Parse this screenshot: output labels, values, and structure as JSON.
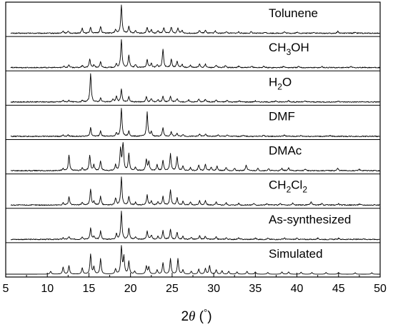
{
  "chart_data": {
    "type": "line",
    "xlabel": "2θ (°)",
    "xlim": [
      5,
      50
    ],
    "x_ticks": [
      "5",
      "10",
      "15",
      "20",
      "25",
      "30",
      "35",
      "40",
      "45",
      "50"
    ],
    "grid": false,
    "layout": "stacked panels",
    "series": [
      {
        "name": "Tolunene",
        "name_parts": [
          {
            "t": "Tolunene"
          }
        ],
        "peaks": [
          [
            11.9,
            0.08
          ],
          [
            12.5,
            0.06
          ],
          [
            14.2,
            0.18
          ],
          [
            15.2,
            0.22
          ],
          [
            16.4,
            0.25
          ],
          [
            18.2,
            0.12
          ],
          [
            18.9,
            1.0
          ],
          [
            19.8,
            0.25
          ],
          [
            20.6,
            0.08
          ],
          [
            22.0,
            0.2
          ],
          [
            22.5,
            0.12
          ],
          [
            23.3,
            0.1
          ],
          [
            24.0,
            0.2
          ],
          [
            24.9,
            0.22
          ],
          [
            25.7,
            0.18
          ],
          [
            26.2,
            0.1
          ],
          [
            28.3,
            0.1
          ],
          [
            29.0,
            0.1
          ],
          [
            30.2,
            0.08
          ],
          [
            31.5,
            0.06
          ],
          [
            33.0,
            0.05
          ],
          [
            34.5,
            0.05
          ],
          [
            36.2,
            0.04
          ],
          [
            38.5,
            0.05
          ],
          [
            40.0,
            0.04
          ],
          [
            42.0,
            0.04
          ],
          [
            44.9,
            0.07
          ],
          [
            47.0,
            0.04
          ]
        ]
      },
      {
        "name": "CH3OH",
        "name_parts": [
          {
            "t": "CH"
          },
          {
            "t": "3",
            "sub": true
          },
          {
            "t": "OH"
          }
        ],
        "peaks": [
          [
            12.0,
            0.06
          ],
          [
            12.6,
            0.1
          ],
          [
            14.2,
            0.08
          ],
          [
            15.1,
            0.3
          ],
          [
            15.6,
            0.1
          ],
          [
            16.4,
            0.2
          ],
          [
            18.3,
            0.12
          ],
          [
            18.9,
            1.0
          ],
          [
            19.8,
            0.45
          ],
          [
            20.6,
            0.1
          ],
          [
            22.0,
            0.3
          ],
          [
            22.5,
            0.15
          ],
          [
            23.2,
            0.1
          ],
          [
            23.9,
            0.65
          ],
          [
            24.9,
            0.3
          ],
          [
            25.6,
            0.22
          ],
          [
            26.2,
            0.12
          ],
          [
            27.2,
            0.08
          ],
          [
            28.3,
            0.14
          ],
          [
            29.0,
            0.12
          ],
          [
            30.3,
            0.08
          ],
          [
            31.4,
            0.07
          ],
          [
            33.0,
            0.05
          ],
          [
            34.6,
            0.05
          ],
          [
            36.0,
            0.04
          ],
          [
            38.4,
            0.05
          ],
          [
            40.2,
            0.04
          ],
          [
            43.0,
            0.04
          ],
          [
            46.5,
            0.04
          ]
        ]
      },
      {
        "name": "H2O",
        "name_parts": [
          {
            "t": "H"
          },
          {
            "t": "2",
            "sub": true
          },
          {
            "t": "O"
          }
        ],
        "peaks": [
          [
            11.9,
            0.06
          ],
          [
            12.6,
            0.06
          ],
          [
            14.2,
            0.05
          ],
          [
            15.2,
            1.0
          ],
          [
            16.4,
            0.14
          ],
          [
            17.9,
            0.1
          ],
          [
            18.3,
            0.2
          ],
          [
            18.9,
            0.45
          ],
          [
            19.8,
            0.18
          ],
          [
            21.9,
            0.18
          ],
          [
            22.5,
            0.12
          ],
          [
            23.3,
            0.08
          ],
          [
            23.9,
            0.2
          ],
          [
            24.8,
            0.2
          ],
          [
            25.6,
            0.12
          ],
          [
            27.0,
            0.07
          ],
          [
            28.2,
            0.1
          ],
          [
            29.0,
            0.1
          ],
          [
            30.3,
            0.07
          ],
          [
            31.6,
            0.06
          ],
          [
            33.1,
            0.04
          ],
          [
            35.0,
            0.04
          ],
          [
            37.5,
            0.04
          ],
          [
            39.0,
            0.05
          ],
          [
            41.0,
            0.03
          ],
          [
            45.0,
            0.04
          ]
        ]
      },
      {
        "name": "DMF",
        "name_parts": [
          {
            "t": "DMF"
          }
        ],
        "peaks": [
          [
            11.9,
            0.05
          ],
          [
            12.5,
            0.05
          ],
          [
            15.2,
            0.3
          ],
          [
            16.4,
            0.2
          ],
          [
            18.3,
            0.12
          ],
          [
            18.9,
            1.0
          ],
          [
            19.8,
            0.18
          ],
          [
            22.0,
            0.85
          ],
          [
            22.5,
            0.15
          ],
          [
            23.9,
            0.3
          ],
          [
            24.9,
            0.15
          ],
          [
            25.6,
            0.1
          ],
          [
            26.3,
            0.07
          ],
          [
            28.3,
            0.08
          ],
          [
            29.0,
            0.08
          ],
          [
            30.5,
            0.05
          ],
          [
            31.6,
            0.05
          ],
          [
            33.5,
            0.04
          ],
          [
            36.0,
            0.04
          ],
          [
            38.5,
            0.05
          ],
          [
            40.5,
            0.03
          ],
          [
            44.0,
            0.03
          ]
        ]
      },
      {
        "name": "DMAc",
        "name_parts": [
          {
            "t": "DMAc"
          }
        ],
        "peaks": [
          [
            11.9,
            0.08
          ],
          [
            12.6,
            0.55
          ],
          [
            14.2,
            0.1
          ],
          [
            15.1,
            0.55
          ],
          [
            15.6,
            0.2
          ],
          [
            16.4,
            0.35
          ],
          [
            18.2,
            0.2
          ],
          [
            18.8,
            0.75
          ],
          [
            19.1,
            1.0
          ],
          [
            19.8,
            0.6
          ],
          [
            20.6,
            0.12
          ],
          [
            21.9,
            0.4
          ],
          [
            22.2,
            0.3
          ],
          [
            23.2,
            0.2
          ],
          [
            23.9,
            0.35
          ],
          [
            24.8,
            0.6
          ],
          [
            25.6,
            0.5
          ],
          [
            26.3,
            0.18
          ],
          [
            27.2,
            0.1
          ],
          [
            28.2,
            0.2
          ],
          [
            29.0,
            0.22
          ],
          [
            29.7,
            0.12
          ],
          [
            30.4,
            0.15
          ],
          [
            31.5,
            0.12
          ],
          [
            32.5,
            0.08
          ],
          [
            33.9,
            0.2
          ],
          [
            35.3,
            0.08
          ],
          [
            36.6,
            0.06
          ],
          [
            38.2,
            0.08
          ],
          [
            39.0,
            0.1
          ],
          [
            41.0,
            0.06
          ],
          [
            44.9,
            0.08
          ],
          [
            47.5,
            0.05
          ]
        ]
      },
      {
        "name": "CH2Cl2",
        "name_parts": [
          {
            "t": "CH"
          },
          {
            "t": "2",
            "sub": true
          },
          {
            "t": "Cl"
          },
          {
            "t": "2",
            "sub": true
          }
        ],
        "peaks": [
          [
            11.9,
            0.08
          ],
          [
            12.6,
            0.28
          ],
          [
            14.2,
            0.1
          ],
          [
            15.2,
            0.55
          ],
          [
            15.6,
            0.12
          ],
          [
            16.4,
            0.3
          ],
          [
            18.2,
            0.25
          ],
          [
            18.9,
            1.0
          ],
          [
            19.8,
            0.3
          ],
          [
            20.6,
            0.1
          ],
          [
            22.0,
            0.35
          ],
          [
            22.5,
            0.15
          ],
          [
            23.3,
            0.12
          ],
          [
            23.9,
            0.3
          ],
          [
            24.8,
            0.55
          ],
          [
            25.6,
            0.25
          ],
          [
            26.3,
            0.12
          ],
          [
            27.2,
            0.1
          ],
          [
            28.3,
            0.15
          ],
          [
            29.0,
            0.15
          ],
          [
            30.3,
            0.1
          ],
          [
            31.5,
            0.08
          ],
          [
            33.0,
            0.06
          ],
          [
            34.8,
            0.06
          ],
          [
            36.4,
            0.05
          ],
          [
            38.0,
            0.06
          ],
          [
            39.5,
            0.07
          ],
          [
            41.7,
            0.12
          ],
          [
            43.0,
            0.05
          ],
          [
            45.0,
            0.05
          ],
          [
            47.5,
            0.04
          ]
        ]
      },
      {
        "name": "As-synthesized",
        "name_parts": [
          {
            "t": "As-synthesized"
          }
        ],
        "peaks": [
          [
            11.9,
            0.06
          ],
          [
            12.6,
            0.1
          ],
          [
            14.2,
            0.1
          ],
          [
            15.2,
            0.4
          ],
          [
            15.6,
            0.1
          ],
          [
            16.4,
            0.3
          ],
          [
            18.3,
            0.2
          ],
          [
            18.9,
            1.0
          ],
          [
            19.8,
            0.4
          ],
          [
            20.6,
            0.1
          ],
          [
            22.0,
            0.3
          ],
          [
            22.5,
            0.15
          ],
          [
            23.3,
            0.1
          ],
          [
            23.9,
            0.3
          ],
          [
            24.8,
            0.35
          ],
          [
            25.6,
            0.25
          ],
          [
            26.3,
            0.1
          ],
          [
            27.3,
            0.08
          ],
          [
            28.3,
            0.12
          ],
          [
            29.0,
            0.12
          ],
          [
            30.3,
            0.08
          ],
          [
            31.5,
            0.06
          ],
          [
            33.0,
            0.05
          ],
          [
            35.0,
            0.05
          ],
          [
            36.5,
            0.04
          ],
          [
            38.5,
            0.05
          ],
          [
            40.0,
            0.04
          ],
          [
            42.5,
            0.04
          ],
          [
            45.0,
            0.04
          ],
          [
            48.0,
            0.03
          ]
        ]
      },
      {
        "name": "Simulated",
        "name_parts": [
          {
            "t": "Simulated"
          }
        ],
        "peaks": [
          [
            10.4,
            0.1
          ],
          [
            11.9,
            0.25
          ],
          [
            12.6,
            0.3
          ],
          [
            14.2,
            0.22
          ],
          [
            15.2,
            0.7
          ],
          [
            15.6,
            0.25
          ],
          [
            16.4,
            0.55
          ],
          [
            18.2,
            0.18
          ],
          [
            18.9,
            1.0
          ],
          [
            19.2,
            0.6
          ],
          [
            19.8,
            0.45
          ],
          [
            20.5,
            0.1
          ],
          [
            21.9,
            0.28
          ],
          [
            22.2,
            0.25
          ],
          [
            23.2,
            0.15
          ],
          [
            23.9,
            0.4
          ],
          [
            24.8,
            0.55
          ],
          [
            25.7,
            0.55
          ],
          [
            26.3,
            0.15
          ],
          [
            27.3,
            0.1
          ],
          [
            28.2,
            0.18
          ],
          [
            29.0,
            0.2
          ],
          [
            29.5,
            0.3
          ],
          [
            30.3,
            0.15
          ],
          [
            31.0,
            0.12
          ],
          [
            31.8,
            0.1
          ],
          [
            32.8,
            0.08
          ],
          [
            34.0,
            0.1
          ],
          [
            35.0,
            0.08
          ],
          [
            36.5,
            0.06
          ],
          [
            38.2,
            0.08
          ],
          [
            39.0,
            0.08
          ],
          [
            40.5,
            0.07
          ],
          [
            41.8,
            0.06
          ],
          [
            43.5,
            0.06
          ],
          [
            45.0,
            0.06
          ],
          [
            47.0,
            0.05
          ],
          [
            49.0,
            0.05
          ]
        ]
      }
    ]
  }
}
